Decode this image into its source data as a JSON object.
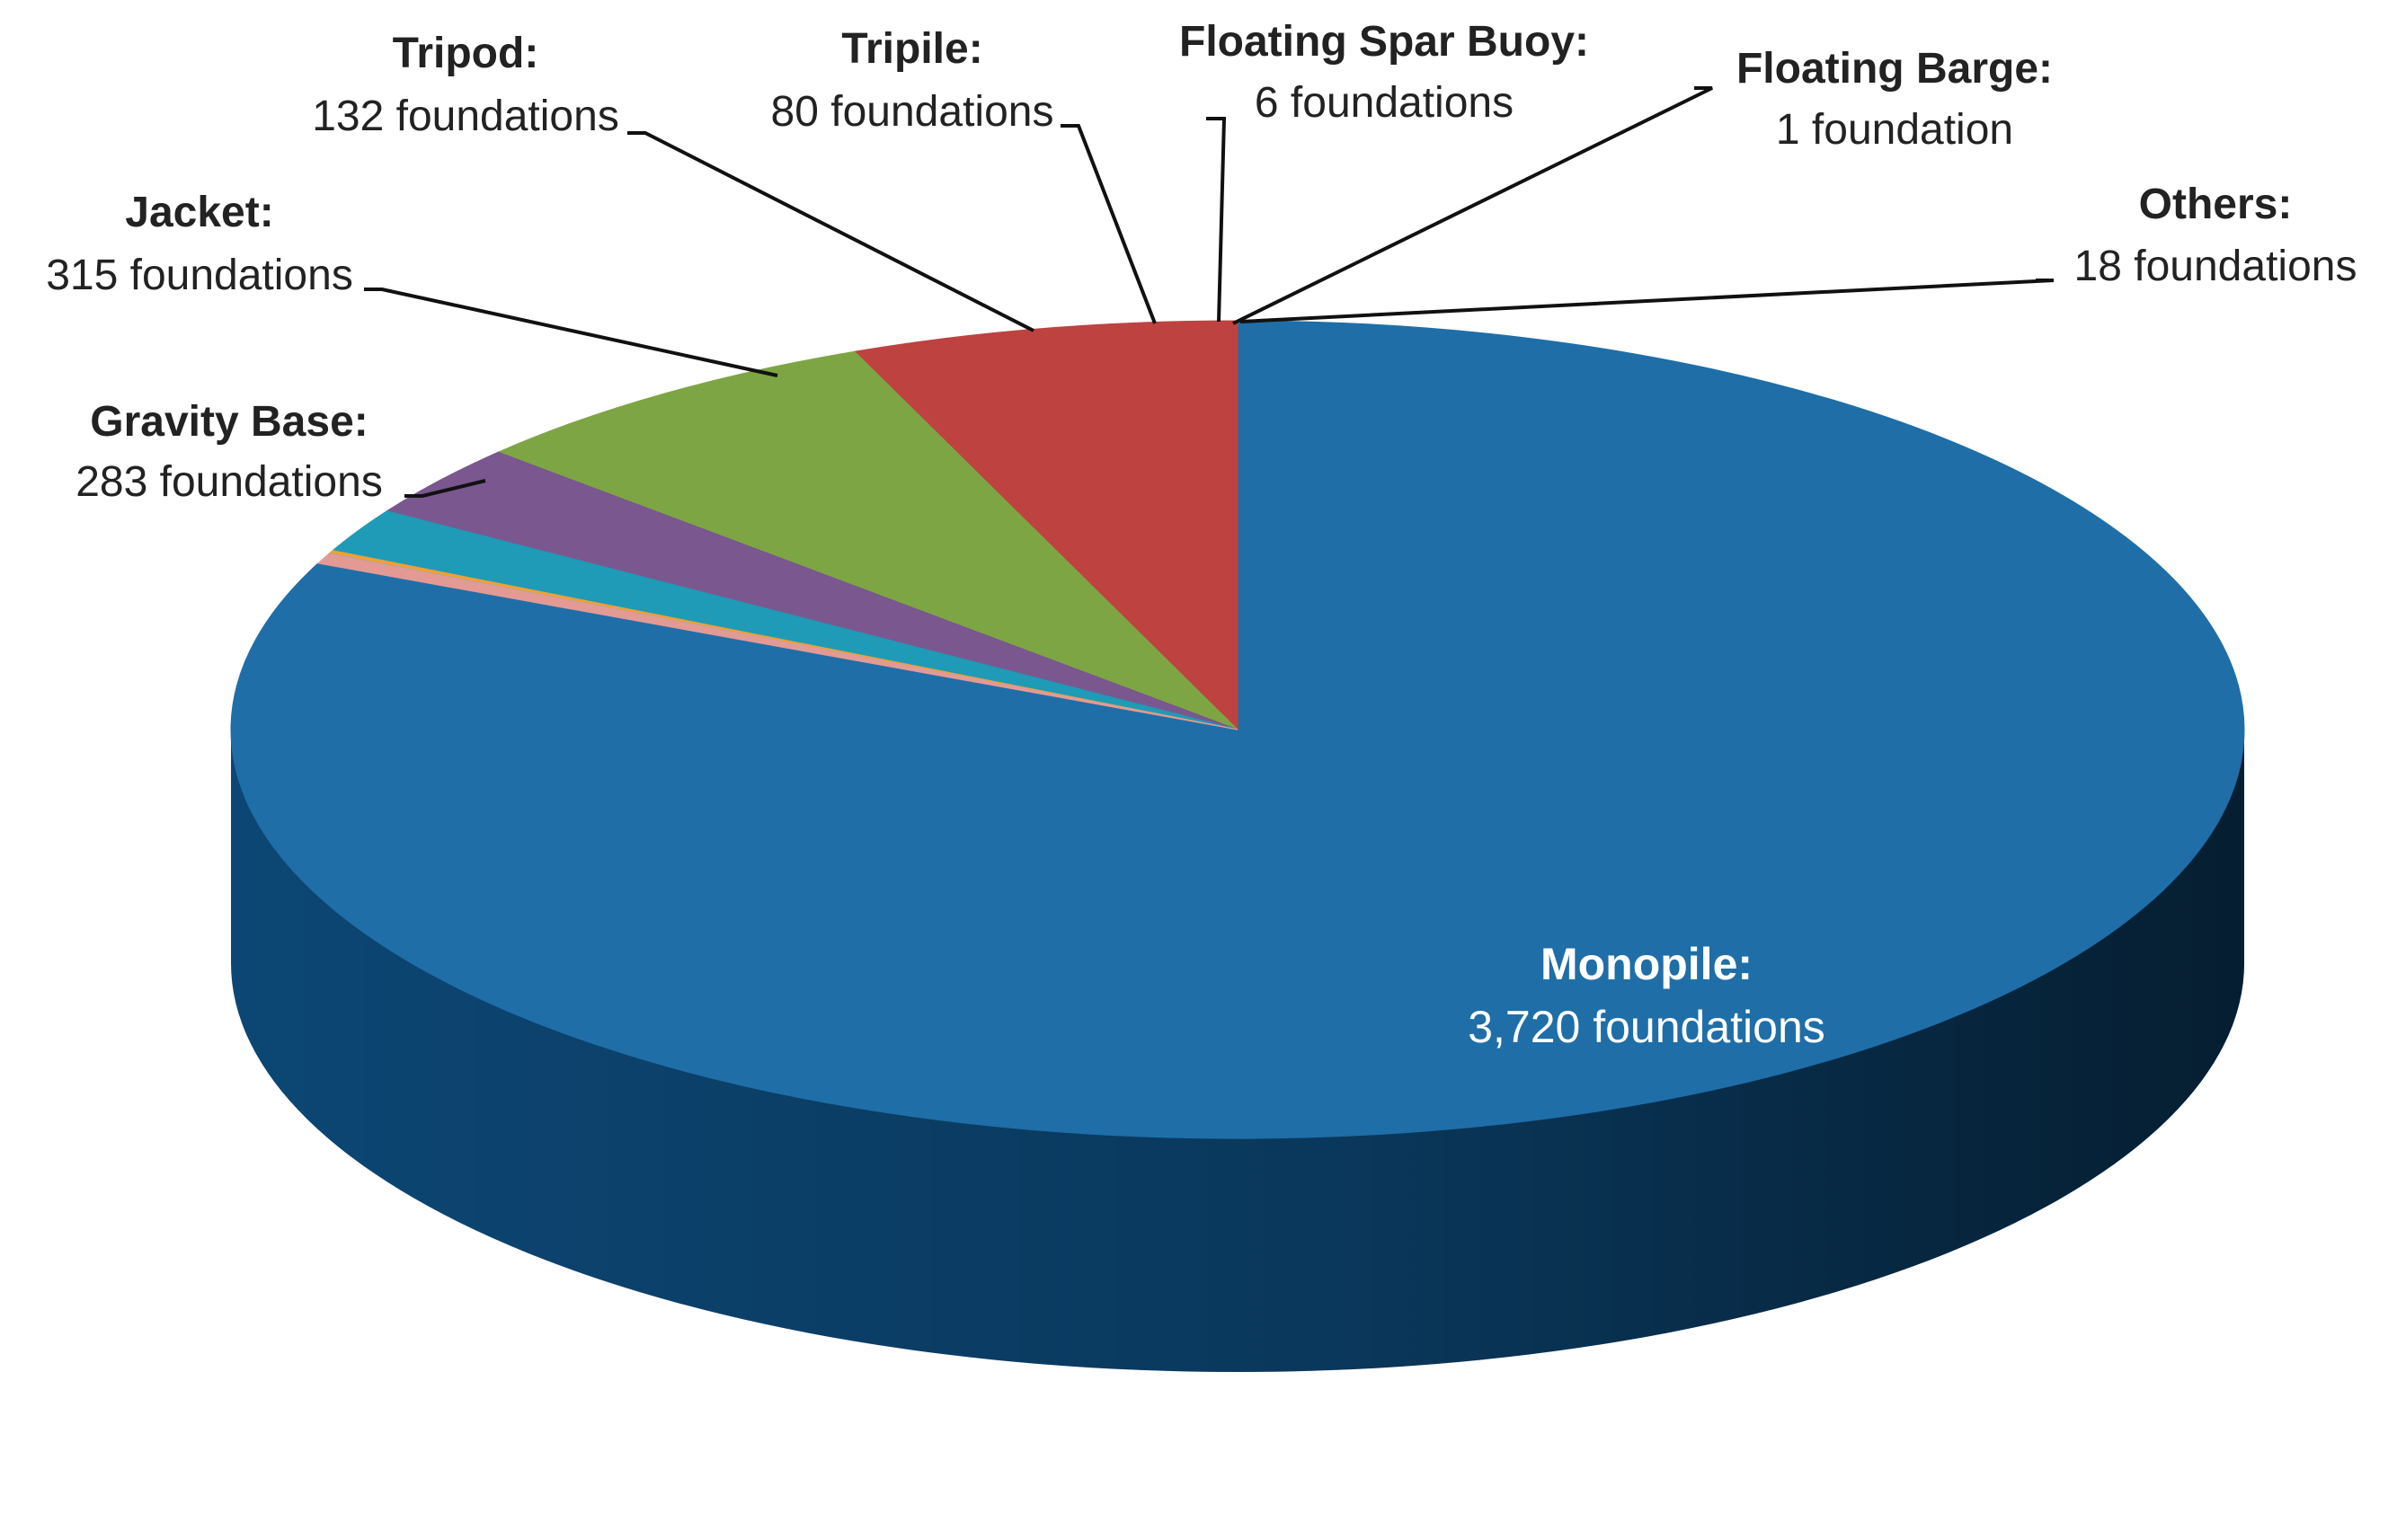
{
  "chart_data": {
    "type": "pie",
    "title": "",
    "slices": [
      {
        "key": "monopile",
        "name": "Monopile:",
        "value": 3720,
        "value_label": "3,720 foundations",
        "color": "#1f6ea8",
        "side_color": "#0d4a7a"
      },
      {
        "key": "gravity-base",
        "name": "Gravity Base:",
        "value": 283,
        "value_label": "283 foundations",
        "color": "#be4240",
        "side_color": "#8e2c2a"
      },
      {
        "key": "jacket",
        "name": "Jacket:",
        "value": 315,
        "value_label": "315 foundations",
        "color": "#7ea544",
        "side_color": "#5a7a2e"
      },
      {
        "key": "tripod",
        "name": "Tripod:",
        "value": 132,
        "value_label": "132 foundations",
        "color": "#7a578f",
        "side_color": "#553d65"
      },
      {
        "key": "tripile",
        "name": "Tripile:",
        "value": 80,
        "value_label": "80 foundations",
        "color": "#1f9bb7",
        "side_color": "#136f85"
      },
      {
        "key": "floating-spar-buoy",
        "name": "Floating Spar Buoy:",
        "value": 6,
        "value_label": "6 foundations",
        "color": "#f0a034",
        "side_color": "#b87522"
      },
      {
        "key": "floating-barge",
        "name": "Floating Barge:",
        "value": 1,
        "value_label": "1 foundation",
        "color": "#9aa8c8",
        "side_color": "#6d7a98"
      },
      {
        "key": "others",
        "name": "Others:",
        "value": 18,
        "value_label": "18 foundations",
        "color": "#e39a94",
        "side_color": "#a96a65"
      }
    ]
  }
}
